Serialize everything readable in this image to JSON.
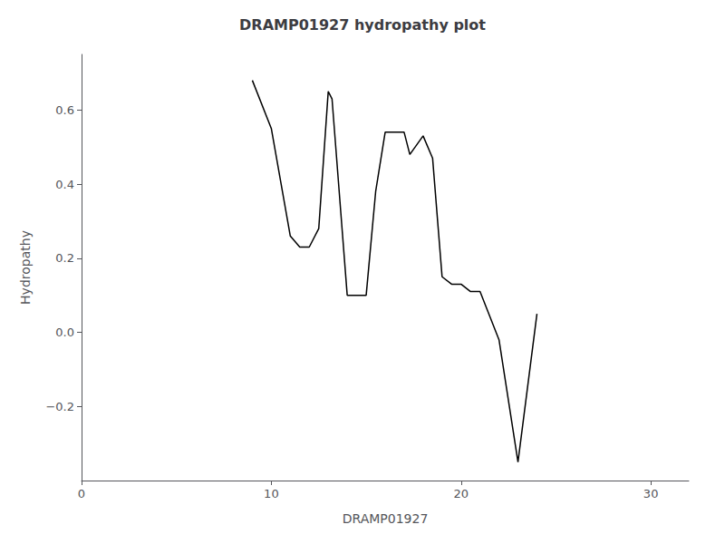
{
  "chart_data": {
    "type": "line",
    "title": "DRAMP01927 hydropathy plot",
    "xlabel": "DRAMP01927",
    "ylabel": "Hydropathy",
    "x": [
      9,
      10,
      11,
      11.5,
      12,
      12.5,
      13,
      13.2,
      14,
      15,
      15.5,
      16,
      17,
      17.3,
      18,
      18.5,
      19,
      19.5,
      20,
      20.5,
      21,
      22,
      23,
      24
    ],
    "values": [
      0.68,
      0.55,
      0.26,
      0.23,
      0.23,
      0.28,
      0.65,
      0.63,
      0.1,
      0.1,
      0.38,
      0.54,
      0.54,
      0.48,
      0.53,
      0.47,
      0.15,
      0.13,
      0.13,
      0.11,
      0.11,
      -0.02,
      -0.35,
      0.05
    ],
    "color": "#000000",
    "xlim": [
      0,
      32
    ],
    "xticks": [
      0,
      10,
      20,
      30
    ],
    "ylim": [
      -0.4,
      0.75
    ],
    "yticks": [
      {
        "value": -0.2,
        "label": "−0.2"
      },
      {
        "value": 0,
        "label": "0.0"
      },
      0.2,
      0.4,
      0.6
    ],
    "grid": false
  }
}
